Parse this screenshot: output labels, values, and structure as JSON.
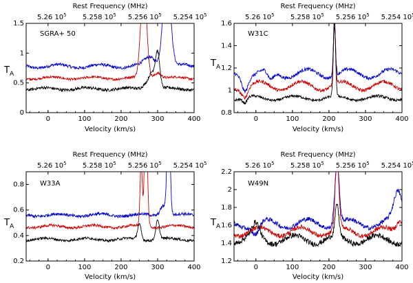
{
  "chart_data": [
    {
      "type": "line",
      "panel_label": "SGRA+ 50",
      "title": "Rest Frequency (MHz)",
      "xlabel": "Velocity (km/s)",
      "ylabel": "T",
      "ylabel_sub": "A",
      "xlim": [
        -60,
        400
      ],
      "ylim": [
        0,
        1.5
      ],
      "x_ticks": [
        "0",
        "100",
        "200",
        "300",
        "400"
      ],
      "x_tick_values": [
        0,
        100,
        200,
        300,
        400
      ],
      "y_ticks": [
        "0",
        "0.5",
        "1",
        "1.5"
      ],
      "y_tick_values": [
        0,
        0.5,
        1,
        1.5
      ],
      "top_ticks": [
        "5.26 10",
        "5.258 10",
        "5.256 10",
        "5.254 10"
      ],
      "top_tick_sup": [
        "5",
        "5",
        "5",
        "5"
      ],
      "series": [
        {
          "color": "#0000cc",
          "base": 0.78,
          "amp": 0.03,
          "noise": 0.025,
          "features": [
            [
              325,
              1.6,
              10
            ],
            [
              280,
              0.15,
              15
            ]
          ]
        },
        {
          "color": "#cc0000",
          "base": 0.58,
          "amp": 0.02,
          "noise": 0.02,
          "features": [
            [
              262,
              1.6,
              8
            ],
            [
              300,
              0.1,
              10
            ]
          ]
        },
        {
          "color": "#000000",
          "base": 0.4,
          "amp": 0.02,
          "noise": 0.025,
          "features": [
            [
              300,
              0.6,
              6
            ],
            [
              285,
              0.25,
              8
            ],
            [
              270,
              0.1,
              10
            ]
          ]
        }
      ]
    },
    {
      "type": "line",
      "panel_label": "W31C",
      "title": "Rest Frequency (MHz)",
      "xlabel": "Velocity (km/s)",
      "ylabel": "T",
      "ylabel_sub": "A",
      "xlim": [
        -60,
        400
      ],
      "ylim": [
        0.8,
        1.6
      ],
      "x_ticks": [
        "0",
        "100",
        "200",
        "300",
        "400"
      ],
      "x_tick_values": [
        0,
        100,
        200,
        300,
        400
      ],
      "y_ticks": [
        "0.8",
        "1",
        "1.2",
        "1.4",
        "1.6"
      ],
      "y_tick_values": [
        0.8,
        1.0,
        1.2,
        1.4,
        1.6
      ],
      "top_ticks": [
        "5.26 10",
        "5.258 10",
        "5.256 10",
        "5.254 10"
      ],
      "top_tick_sup": [
        "5",
        "5",
        "5",
        "5"
      ],
      "series": [
        {
          "color": "#0000cc",
          "base": 1.15,
          "amp": 0.04,
          "noise": 0.015,
          "features": [
            [
              215,
              0.45,
              3
            ],
            [
              -30,
              -0.12,
              8
            ],
            [
              40,
              -0.08,
              8
            ]
          ]
        },
        {
          "color": "#cc0000",
          "base": 1.04,
          "amp": 0.04,
          "noise": 0.015,
          "features": [
            [
              215,
              0.55,
              3
            ],
            [
              -30,
              -0.08,
              8
            ]
          ]
        },
        {
          "color": "#000000",
          "base": 0.93,
          "amp": 0.02,
          "noise": 0.012,
          "features": [
            [
              215,
              0.7,
              3
            ],
            [
              -30,
              -0.05,
              6
            ]
          ]
        }
      ]
    },
    {
      "type": "line",
      "panel_label": "W33A",
      "title": "Rest Frequency (MHz)",
      "xlabel": "Velocity (km/s)",
      "ylabel": "T",
      "ylabel_sub": "A",
      "xlim": [
        -60,
        400
      ],
      "ylim": [
        0.2,
        0.9
      ],
      "x_ticks": [
        "0",
        "100",
        "200",
        "300",
        "400"
      ],
      "x_tick_values": [
        0,
        100,
        200,
        300,
        400
      ],
      "y_ticks": [
        "0.2",
        "0.4",
        "0.6",
        "0.8"
      ],
      "y_tick_values": [
        0.2,
        0.4,
        0.6,
        0.8
      ],
      "top_ticks": [
        "5.26 10",
        "5.258 10",
        "5.256 10",
        "5.254 10"
      ],
      "top_tick_sup": [
        "5",
        "5",
        "5",
        "5"
      ],
      "series": [
        {
          "color": "#0000cc",
          "base": 0.56,
          "amp": 0.01,
          "noise": 0.012,
          "features": [
            [
              330,
              0.9,
              4
            ],
            [
              315,
              0.08,
              8
            ]
          ]
        },
        {
          "color": "#cc0000",
          "base": 0.47,
          "amp": 0.01,
          "noise": 0.01,
          "features": [
            [
              268,
              0.9,
              4
            ],
            [
              255,
              0.5,
              3
            ]
          ]
        },
        {
          "color": "#000000",
          "base": 0.37,
          "amp": 0.01,
          "noise": 0.01,
          "features": [
            [
              300,
              0.15,
              5
            ],
            [
              250,
              0.12,
              5
            ]
          ]
        }
      ]
    },
    {
      "type": "line",
      "panel_label": "W49N",
      "title": "Rest Frequency (MHz)",
      "xlabel": "Velocity (km/s)",
      "ylabel": "T",
      "ylabel_sub": "A",
      "xlim": [
        -60,
        400
      ],
      "ylim": [
        1.2,
        2.2
      ],
      "x_ticks": [
        "0",
        "100",
        "200",
        "300",
        "400"
      ],
      "x_tick_values": [
        0,
        100,
        200,
        300,
        400
      ],
      "y_ticks": [
        "1.2",
        "1.4",
        "1.6",
        "1.8",
        "2",
        "2.2"
      ],
      "y_tick_values": [
        1.2,
        1.4,
        1.6,
        1.8,
        2.0,
        2.2
      ],
      "top_ticks": [
        "5.26 10",
        "5.258 10",
        "5.256 10",
        "5.254 10"
      ],
      "top_tick_sup": [
        "5",
        "5",
        "5",
        "5"
      ],
      "series": [
        {
          "color": "#0000cc",
          "base": 1.62,
          "amp": 0.05,
          "noise": 0.025,
          "features": [
            [
              222,
              0.7,
              6
            ],
            [
              390,
              0.35,
              12
            ],
            [
              0,
              -0.12,
              10
            ]
          ]
        },
        {
          "color": "#cc0000",
          "base": 1.53,
          "amp": 0.05,
          "noise": 0.025,
          "features": [
            [
              222,
              0.8,
              5
            ],
            [
              395,
              0.15,
              10
            ]
          ]
        },
        {
          "color": "#000000",
          "base": 1.44,
          "amp": 0.05,
          "noise": 0.03,
          "features": [
            [
              222,
              0.35,
              5
            ],
            [
              0,
              0.15,
              10
            ]
          ]
        }
      ]
    }
  ]
}
